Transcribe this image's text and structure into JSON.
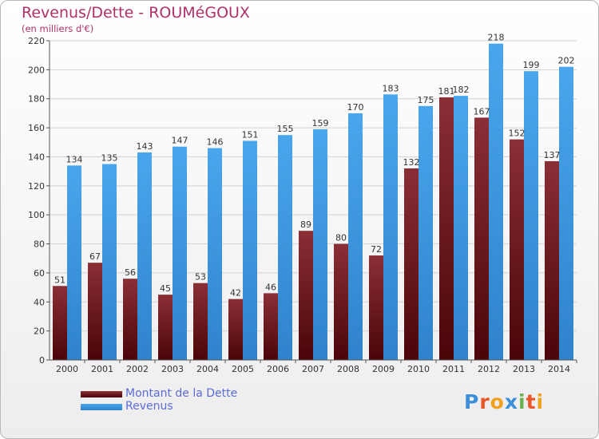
{
  "header": {
    "title": "Revenus/Dette - ROUMéGOUX",
    "subtitle": "(en milliers d'€)"
  },
  "colors": {
    "dette": "#7a2328",
    "revenus": "#3d9ae3",
    "title": "#b0306a",
    "legend_text": "#5b6bd8"
  },
  "legend": {
    "dette_label": "Montant de la Dette",
    "revenus_label": "Revenus"
  },
  "logo": {
    "text": "Proxiti",
    "letters": [
      "P",
      "r",
      "o",
      "x",
      "i",
      "t",
      "i"
    ],
    "letter_colors": [
      "#3d8fd9",
      "#e8562a",
      "#f0a21e",
      "#3d8fd9",
      "#6ab04c",
      "#e8562a",
      "#f0a21e"
    ]
  },
  "chart_data": {
    "type": "bar",
    "title": "Revenus/Dette - ROUMéGOUX",
    "ylabel": "(en milliers d'€)",
    "categories": [
      "2000",
      "2001",
      "2002",
      "2003",
      "2004",
      "2005",
      "2006",
      "2007",
      "2008",
      "2009",
      "2010",
      "2011",
      "2012",
      "2013",
      "2014"
    ],
    "series": [
      {
        "name": "Montant de la Dette",
        "values": [
          51,
          67,
          56,
          45,
          53,
          42,
          46,
          89,
          80,
          72,
          132,
          181,
          167,
          152,
          137
        ]
      },
      {
        "name": "Revenus",
        "values": [
          134,
          135,
          143,
          147,
          146,
          151,
          155,
          159,
          170,
          183,
          175,
          182,
          218,
          199,
          202
        ]
      }
    ],
    "ylim": [
      0,
      220
    ],
    "yticks": [
      0,
      20,
      40,
      60,
      80,
      100,
      120,
      140,
      160,
      180,
      200,
      220
    ],
    "grid": true,
    "legend_position": "bottom-left"
  }
}
